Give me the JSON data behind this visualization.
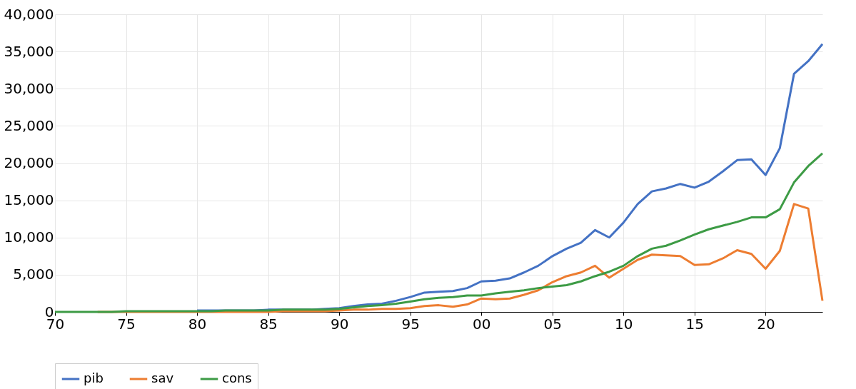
{
  "chart_data": {
    "type": "line",
    "x": [
      1970,
      1971,
      1972,
      1973,
      1974,
      1975,
      1976,
      1977,
      1978,
      1979,
      1980,
      1981,
      1982,
      1983,
      1984,
      1985,
      1986,
      1987,
      1988,
      1989,
      1990,
      1991,
      1992,
      1993,
      1994,
      1995,
      1996,
      1997,
      1998,
      1999,
      2000,
      2001,
      2002,
      2003,
      2004,
      2005,
      2006,
      2007,
      2008,
      2009,
      2010,
      2011,
      2012,
      2013,
      2014,
      2015,
      2016,
      2017,
      2018,
      2019,
      2020,
      2021,
      2022,
      2023,
      2024
    ],
    "series": [
      {
        "name": "pib",
        "color": "#4472c4",
        "values": [
          null,
          null,
          null,
          null,
          null,
          null,
          null,
          null,
          null,
          null,
          200,
          200,
          200,
          200,
          200,
          300,
          300,
          300,
          300,
          400,
          500,
          800,
          1000,
          1100,
          1500,
          2000,
          2600,
          2700,
          2800,
          3200,
          4100,
          4200,
          4500,
          5300,
          6200,
          7500,
          8500,
          9300,
          11000,
          10000,
          12000,
          14500,
          16200,
          16600,
          17200,
          16700,
          17500,
          18900,
          20400,
          20500,
          18400,
          22000,
          32000,
          33700,
          36000
        ]
      },
      {
        "name": "sav",
        "color": "#ed7d31",
        "values": [
          null,
          null,
          null,
          0,
          0,
          0,
          0,
          0,
          0,
          0,
          0,
          0,
          0,
          0,
          0,
          0,
          100,
          100,
          100,
          100,
          200,
          300,
          300,
          400,
          400,
          500,
          800,
          900,
          700,
          1000,
          1800,
          1700,
          1800,
          2300,
          2900,
          4000,
          4800,
          5300,
          6200,
          4600,
          5800,
          7000,
          7700,
          7600,
          7500,
          6300,
          6400,
          7200,
          8300,
          7800,
          5800,
          8200,
          14500,
          13900,
          1500
        ]
      },
      {
        "name": "cons",
        "color": "#3d9b45",
        "values": [
          0,
          0,
          0,
          0,
          0,
          100,
          100,
          100,
          100,
          100,
          100,
          100,
          200,
          200,
          200,
          200,
          300,
          300,
          300,
          300,
          400,
          600,
          800,
          900,
          1100,
          1400,
          1700,
          1900,
          2000,
          2200,
          2200,
          2500,
          2700,
          2900,
          3200,
          3400,
          3600,
          4100,
          4800,
          5400,
          6200,
          7500,
          8500,
          8900,
          9600,
          10400,
          11100,
          11600,
          12100,
          12700,
          12700,
          13800,
          17400,
          19600,
          21300
        ]
      }
    ],
    "xlim": [
      1970,
      2024
    ],
    "xticks": [
      {
        "value": 1970,
        "label": "70"
      },
      {
        "value": 1975,
        "label": "75"
      },
      {
        "value": 1980,
        "label": "80"
      },
      {
        "value": 1985,
        "label": "85"
      },
      {
        "value": 1990,
        "label": "90"
      },
      {
        "value": 1995,
        "label": "95"
      },
      {
        "value": 2000,
        "label": "00"
      },
      {
        "value": 2005,
        "label": "05"
      },
      {
        "value": 2010,
        "label": "10"
      },
      {
        "value": 2015,
        "label": "15"
      },
      {
        "value": 2020,
        "label": "20"
      }
    ],
    "ylim": [
      0,
      40000
    ],
    "yticks": [
      {
        "value": 0,
        "label": "0"
      },
      {
        "value": 5000,
        "label": "5,000"
      },
      {
        "value": 10000,
        "label": "10,000"
      },
      {
        "value": 15000,
        "label": "15,000"
      },
      {
        "value": 20000,
        "label": "20,000"
      },
      {
        "value": 25000,
        "label": "25,000"
      },
      {
        "value": 30000,
        "label": "30,000"
      },
      {
        "value": 35000,
        "label": "35,000"
      },
      {
        "value": 40000,
        "label": "40,000"
      }
    ],
    "grid": true,
    "legend": "bottom",
    "marker": "none",
    "line_style": "solid"
  }
}
